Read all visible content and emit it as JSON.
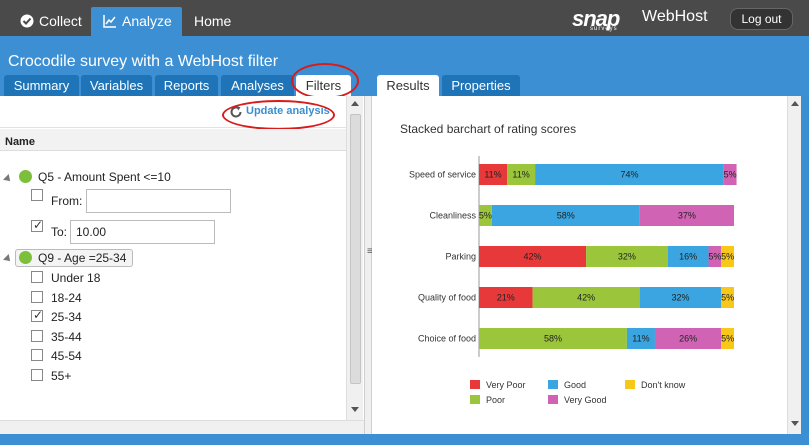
{
  "nav": {
    "collect": "Collect",
    "analyze": "Analyze",
    "home": "Home",
    "brand": "snap",
    "brand_sub": "surveys",
    "product": "WebHost",
    "logout": "Log out"
  },
  "survey_title": "Crocodile survey with a WebHost filter",
  "left_tabs": [
    "Summary",
    "Variables",
    "Reports",
    "Analyses",
    "Filters"
  ],
  "right_tabs": [
    "Results",
    "Properties"
  ],
  "update_label": "Update analysis",
  "name_header": "Name",
  "filters": {
    "q5_label": "Q5 - Amount Spent <=10",
    "from_label": "From:",
    "from_value": "",
    "to_label": "To:",
    "to_value": "10.00",
    "q9_label": "Q9 - Age =25-34",
    "age_options": [
      "Under 18",
      "18-24",
      "25-34",
      "35-44",
      "45-54",
      "55+"
    ]
  },
  "colors": {
    "very_poor": "#e8393a",
    "poor": "#9bc63b",
    "good": "#3aa5e0",
    "very_good": "#d163b4",
    "dont_know": "#f7c71a"
  },
  "chart_data": {
    "type": "bar",
    "orientation": "horizontal",
    "stacked": "percent",
    "title": "Stacked barchart of rating scores",
    "categories": [
      "Speed of service",
      "Cleanliness",
      "Parking",
      "Quality of food",
      "Choice of food"
    ],
    "series": [
      {
        "name": "Very Poor",
        "values": [
          11,
          0,
          42,
          21,
          0
        ]
      },
      {
        "name": "Poor",
        "values": [
          11,
          5,
          32,
          42,
          58
        ]
      },
      {
        "name": "Good",
        "values": [
          74,
          58,
          16,
          32,
          11
        ]
      },
      {
        "name": "Very Good",
        "values": [
          5,
          37,
          5,
          0,
          26
        ]
      },
      {
        "name": "Don't know",
        "values": [
          0,
          0,
          5,
          5,
          5
        ]
      }
    ],
    "legend_position": "bottom"
  }
}
